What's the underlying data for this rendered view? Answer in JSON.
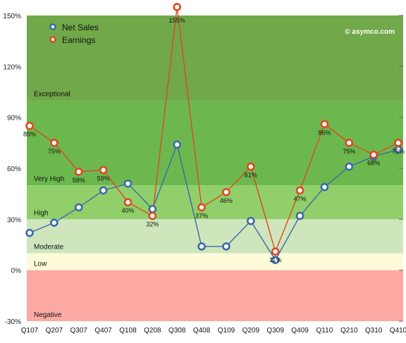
{
  "chart_data": {
    "type": "line",
    "categories": [
      "Q107",
      "Q207",
      "Q307",
      "Q407",
      "Q108",
      "Q208",
      "Q308",
      "Q408",
      "Q109",
      "Q209",
      "Q309",
      "Q409",
      "Q110",
      "Q210",
      "Q310",
      "Q410"
    ],
    "series": [
      {
        "name": "Net Sales",
        "color": "#3b6aa8",
        "values": [
          22,
          28,
          37,
          47,
          51,
          36,
          74,
          14,
          14,
          29,
          6,
          32,
          49,
          61,
          67,
          71
        ]
      },
      {
        "name": "Earnings",
        "color": "#dd4a1e",
        "values": [
          85,
          75,
          58,
          59,
          40,
          32,
          155,
          37,
          46,
          61,
          11,
          47,
          86,
          75,
          68,
          75
        ]
      }
    ],
    "earnings_labels": [
      "85%",
      "75%",
      "58%",
      "59%",
      "40%",
      "32%",
      "155%",
      "37%",
      "46%",
      "61%",
      "11%",
      "47%",
      "86%",
      "75%",
      "68%",
      "75%"
    ],
    "ylim": [
      -30,
      150
    ],
    "y_ticks": [
      {
        "value": 150,
        "label": "150%"
      },
      {
        "value": 120,
        "label": "120%"
      },
      {
        "value": 90,
        "label": "90%"
      },
      {
        "value": 60,
        "label": "60%"
      },
      {
        "value": 30,
        "label": "30%"
      },
      {
        "value": 0,
        "label": "0%"
      },
      {
        "value": -30,
        "label": "-30%"
      }
    ],
    "bands": [
      {
        "name": "Exceptional",
        "from": 100,
        "to": 150,
        "color": "#71a84a"
      },
      {
        "name": "Very High",
        "from": 50,
        "to": 100,
        "color": "#6cb84e"
      },
      {
        "name": "High",
        "from": 30,
        "to": 50,
        "color": "#90cf6a"
      },
      {
        "name": "Moderate",
        "from": 10,
        "to": 30,
        "color": "#cfe6bd"
      },
      {
        "name": "Low",
        "from": 0,
        "to": 10,
        "color": "#fdfbd9"
      },
      {
        "name": "Negative",
        "from": -30,
        "to": 0,
        "color": "#fda9a3"
      }
    ],
    "legend_position": "top-left",
    "watermark": "© asymco.com",
    "grid": false
  }
}
